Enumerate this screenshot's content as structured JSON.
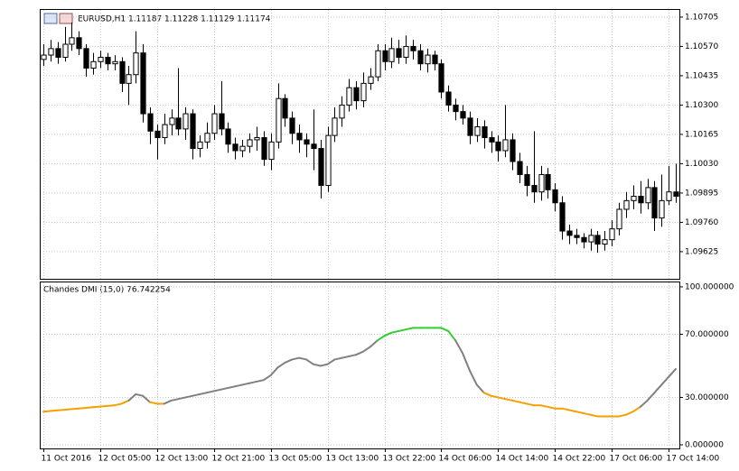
{
  "chart_data": [
    {
      "type": "candlestick",
      "title": "EURUSD,H1  1.11187 1.11228 1.11129 1.11174",
      "categories": [
        "11 Oct 2016",
        null,
        null,
        null,
        null,
        null,
        null,
        null,
        "12 Oct 05:00",
        null,
        null,
        null,
        null,
        null,
        null,
        null,
        "12 Oct 13:00",
        null,
        null,
        null,
        null,
        null,
        null,
        null,
        "12 Oct 21:00",
        null,
        null,
        null,
        null,
        null,
        null,
        null,
        "13 Oct 05:00",
        null,
        null,
        null,
        null,
        null,
        null,
        null,
        "13 Oct 13:00",
        null,
        null,
        null,
        null,
        null,
        null,
        null,
        "13 Oct 22:00",
        null,
        null,
        null,
        null,
        null,
        null,
        null,
        "14 Oct 06:00",
        null,
        null,
        null,
        null,
        null,
        null,
        null,
        "14 Oct 14:00",
        null,
        null,
        null,
        null,
        null,
        null,
        null,
        "14 Oct 22:00",
        null,
        null,
        null,
        null,
        null,
        null,
        null,
        "17 Oct 06:00",
        null,
        null,
        null,
        null,
        null,
        null,
        null,
        "17 Oct 14:00",
        null
      ],
      "open": [
        1.1051,
        1.1053,
        1.1056,
        1.1052,
        1.1058,
        1.1061,
        1.1056,
        1.1047,
        1.105,
        1.1052,
        1.1049,
        1.105,
        1.104,
        1.1044,
        1.1054,
        1.1026,
        1.1018,
        1.1015,
        1.1021,
        1.1024,
        1.1019,
        1.1026,
        1.101,
        1.1013,
        1.1017,
        1.1026,
        1.1019,
        1.1012,
        1.1009,
        1.1011,
        1.1014,
        1.1015,
        1.1005,
        1.1013,
        1.1033,
        1.1024,
        1.1017,
        1.1014,
        1.1012,
        1.101,
        1.0993,
        1.1016,
        1.1024,
        1.103,
        1.1038,
        1.1032,
        1.104,
        1.1043,
        1.1055,
        1.105,
        1.1056,
        1.1052,
        1.1057,
        1.1055,
        1.1049,
        1.1053,
        1.1049,
        1.1036,
        1.103,
        1.1027,
        1.1024,
        1.1016,
        1.102,
        1.1015,
        1.1013,
        1.1009,
        1.1014,
        1.1004,
        1.0998,
        1.0993,
        1.099,
        1.0998,
        1.0991,
        1.0985,
        1.0972,
        1.097,
        1.0969,
        1.0967,
        1.097,
        1.0966,
        1.0968,
        1.0973,
        1.0982,
        1.0986,
        1.0988,
        1.0985,
        1.0992,
        1.0978,
        1.0986,
        1.099
      ],
      "high": [
        1.1058,
        1.106,
        1.1059,
        1.1066,
        1.1068,
        1.1064,
        1.1058,
        1.1054,
        1.1055,
        1.1054,
        1.1053,
        1.1052,
        1.1048,
        1.1064,
        1.1058,
        1.1029,
        1.1021,
        1.1026,
        1.1028,
        1.1047,
        1.1029,
        1.1028,
        1.1016,
        1.1022,
        1.103,
        1.1041,
        1.1022,
        1.1015,
        1.1014,
        1.1017,
        1.102,
        1.1018,
        1.1017,
        1.104,
        1.1035,
        1.1027,
        1.1021,
        1.1017,
        1.1028,
        1.1014,
        1.102,
        1.1029,
        1.1034,
        1.1042,
        1.1041,
        1.1045,
        1.1047,
        1.1058,
        1.1058,
        1.1061,
        1.106,
        1.1062,
        1.106,
        1.1058,
        1.1056,
        1.1055,
        1.1051,
        1.1039,
        1.1033,
        1.103,
        1.1027,
        1.1024,
        1.1023,
        1.1018,
        1.1016,
        1.103,
        1.1017,
        1.1008,
        1.1002,
        1.1018,
        1.1002,
        1.1001,
        1.0994,
        1.0988,
        1.0975,
        1.0973,
        1.0971,
        1.0973,
        1.0972,
        1.0972,
        1.0977,
        1.0985,
        1.099,
        1.0993,
        1.0995,
        1.0996,
        1.0995,
        1.0998,
        1.1002,
        1.1003
      ],
      "low": [
        1.1048,
        1.105,
        1.1049,
        1.105,
        1.1055,
        1.1053,
        1.1043,
        1.1044,
        1.1047,
        1.1046,
        1.1046,
        1.1036,
        1.103,
        1.104,
        1.1022,
        1.1012,
        1.1005,
        1.1012,
        1.1016,
        1.1016,
        1.1014,
        1.1005,
        1.1006,
        1.101,
        1.1014,
        1.1016,
        1.1008,
        1.1005,
        1.1006,
        1.1008,
        1.1009,
        1.1002,
        1.1,
        1.101,
        1.102,
        1.1012,
        1.1008,
        1.1006,
        1.1,
        1.0987,
        1.099,
        1.1013,
        1.102,
        1.1027,
        1.1028,
        1.1029,
        1.1037,
        1.1041,
        1.1046,
        1.1047,
        1.1049,
        1.1049,
        1.1051,
        1.1046,
        1.1045,
        1.1046,
        1.1033,
        1.1027,
        1.1023,
        1.1021,
        1.1012,
        1.1013,
        1.101,
        1.1008,
        1.1004,
        1.1006,
        1.1,
        1.0994,
        1.0988,
        1.0985,
        1.0986,
        1.0987,
        1.0981,
        1.0968,
        1.0966,
        1.0966,
        1.0964,
        1.0963,
        1.0962,
        1.0963,
        1.0965,
        1.097,
        1.0978,
        1.0982,
        1.098,
        1.0982,
        1.0972,
        1.0974,
        1.0984,
        1.0985
      ],
      "close": [
        1.1053,
        1.1056,
        1.1052,
        1.1058,
        1.1061,
        1.1056,
        1.1047,
        1.105,
        1.1052,
        1.1049,
        1.105,
        1.104,
        1.1044,
        1.1054,
        1.1026,
        1.1018,
        1.1015,
        1.1021,
        1.1024,
        1.1019,
        1.1026,
        1.101,
        1.1013,
        1.1017,
        1.1026,
        1.1019,
        1.1012,
        1.1009,
        1.1011,
        1.1014,
        1.1015,
        1.1005,
        1.1013,
        1.1033,
        1.1024,
        1.1017,
        1.1014,
        1.1012,
        1.101,
        1.0993,
        1.1016,
        1.1024,
        1.103,
        1.1038,
        1.1032,
        1.104,
        1.1043,
        1.1055,
        1.105,
        1.1056,
        1.1052,
        1.1057,
        1.1055,
        1.1049,
        1.1053,
        1.1049,
        1.1036,
        1.103,
        1.1027,
        1.1024,
        1.1016,
        1.102,
        1.1015,
        1.1013,
        1.1009,
        1.1014,
        1.1004,
        1.0998,
        1.0993,
        1.099,
        1.0998,
        1.0991,
        1.0985,
        1.0972,
        1.097,
        1.0969,
        1.0967,
        1.097,
        1.0966,
        1.0968,
        1.0973,
        1.0982,
        1.0986,
        1.0988,
        1.0985,
        1.0992,
        1.0978,
        1.0986,
        1.099,
        1.0988
      ],
      "up_color": "#ffffff",
      "down_color": "#000000",
      "outline_color": "#000000",
      "ylim": [
        1.095,
        1.10738
      ],
      "yticks": [
        1.10705,
        {
          "value": 1.1057,
          "label": "1.10570"
        },
        1.10435,
        {
          "value": 1.103,
          "label": "1.10300"
        },
        1.10165,
        {
          "value": 1.1003,
          "label": "1.10030"
        },
        1.09895,
        {
          "value": 1.0976,
          "label": "1.09760"
        },
        1.09625
      ],
      "grid": true
    },
    {
      "type": "line",
      "title": "Chandes DMI (15,0) 76.742254",
      "values": [
        21,
        21.4,
        21.8,
        22.2,
        22.6,
        23,
        23.4,
        23.8,
        24.2,
        24.6,
        25,
        26,
        28,
        32,
        31,
        27,
        26,
        26,
        28,
        29,
        30,
        31,
        32,
        33,
        34,
        35,
        36,
        37,
        38,
        39,
        40,
        41,
        44,
        49,
        52,
        54,
        55,
        54,
        51,
        50,
        51,
        54,
        55,
        56,
        57,
        59,
        62,
        66,
        69,
        71,
        72,
        73,
        74,
        74,
        74,
        74,
        74,
        72,
        66,
        58,
        47,
        38,
        33,
        31,
        30,
        29,
        28,
        27,
        26,
        25,
        25,
        24,
        23,
        23,
        22,
        21,
        20,
        19,
        18,
        18,
        18,
        18,
        19,
        21,
        24,
        28,
        33,
        38,
        43,
        48
      ],
      "point_colors": [
        "#f5a000",
        "#f5a000",
        "#f5a000",
        "#f5a000",
        "#f5a000",
        "#f5a000",
        "#f5a000",
        "#f5a000",
        "#f5a000",
        "#f5a000",
        "#f5a000",
        "#f5a000",
        "#f5a000",
        "#808080",
        "#808080",
        "#808080",
        "#f5a000",
        "#f5a000",
        "#808080",
        "#808080",
        "#808080",
        "#808080",
        "#808080",
        "#808080",
        "#808080",
        "#808080",
        "#808080",
        "#808080",
        "#808080",
        "#808080",
        "#808080",
        "#808080",
        "#808080",
        "#808080",
        "#808080",
        "#808080",
        "#808080",
        "#808080",
        "#808080",
        "#808080",
        "#808080",
        "#808080",
        "#808080",
        "#808080",
        "#808080",
        "#808080",
        "#808080",
        "#808080",
        "#32cd32",
        "#32cd32",
        "#32cd32",
        "#32cd32",
        "#32cd32",
        "#32cd32",
        "#32cd32",
        "#32cd32",
        "#32cd32",
        "#32cd32",
        "#32cd32",
        "#808080",
        "#808080",
        "#808080",
        "#808080",
        "#f5a000",
        "#f5a000",
        "#f5a000",
        "#f5a000",
        "#f5a000",
        "#f5a000",
        "#f5a000",
        "#f5a000",
        "#f5a000",
        "#f5a000",
        "#f5a000",
        "#f5a000",
        "#f5a000",
        "#f5a000",
        "#f5a000",
        "#f5a000",
        "#f5a000",
        "#f5a000",
        "#f5a000",
        "#f5a000",
        "#f5a000",
        "#f5a000",
        "#808080",
        "#808080",
        "#808080",
        "#808080",
        "#808080"
      ],
      "ylim": [
        -2.3,
        102.8
      ],
      "yticks": [
        {
          "value": 100,
          "label": "100.000000"
        },
        {
          "value": 70,
          "label": "70.000000"
        },
        {
          "value": 30,
          "label": "30.000000"
        },
        {
          "value": 0,
          "label": "0.000000"
        }
      ],
      "grid": true
    }
  ]
}
